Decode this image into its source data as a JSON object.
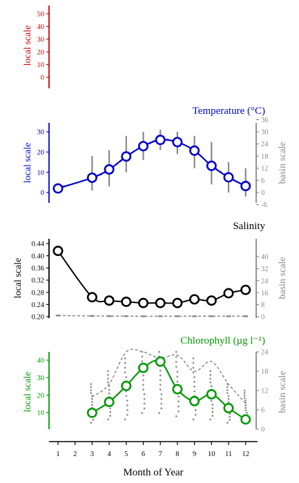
{
  "colors": {
    "temperature": "#0000cc",
    "salinity": "#000000",
    "chlorophyll": "#009900",
    "empty_panel": "#cc0000",
    "basin": "#888888"
  },
  "chart_data": [
    {
      "type": "line",
      "panel": "empty",
      "title": "",
      "ylabel": "local scale",
      "ylim": [
        -5,
        55
      ],
      "yticks": [
        0,
        10,
        20,
        30,
        40,
        50
      ],
      "series": []
    },
    {
      "type": "line",
      "panel": "temperature",
      "title": "Temperature (°C)",
      "ylabel": "local scale",
      "ylabel_right": "basin scale",
      "ylim": [
        -6,
        36
      ],
      "yticks": [
        0,
        10,
        20,
        30
      ],
      "yticks_right": [
        -6,
        0,
        6,
        12,
        18,
        24,
        30,
        36
      ],
      "x": [
        1,
        3,
        4,
        5,
        6,
        7,
        8,
        9,
        10,
        11,
        12
      ],
      "local_mean": [
        2.0,
        7.3,
        11.4,
        17.8,
        22.9,
        26.0,
        24.9,
        20.7,
        13.2,
        7.5,
        3.2
      ],
      "basin_mean": [
        2.5,
        7.0,
        11.0,
        17.5,
        23.0,
        26.5,
        25.0,
        20.5,
        13.5,
        8.0,
        3.0
      ],
      "basin_range": [
        [
          1,
          4
        ],
        [
          1,
          18
        ],
        [
          3,
          21
        ],
        [
          10,
          28
        ],
        [
          16,
          30
        ],
        [
          21,
          31
        ],
        [
          19,
          30
        ],
        [
          12,
          28
        ],
        [
          4,
          25
        ],
        [
          0,
          15
        ],
        [
          -2,
          12
        ]
      ]
    },
    {
      "type": "line",
      "panel": "salinity",
      "title": "Salinity",
      "ylabel": "local scale",
      "ylabel_right": "basin scale",
      "ylim": [
        0.2,
        0.46
      ],
      "yticks": [
        0.2,
        0.24,
        0.28,
        0.32,
        0.36,
        0.4,
        0.44
      ],
      "yticks_right": [
        0,
        8,
        16,
        24,
        32,
        40
      ],
      "ylim_right": [
        0,
        40
      ],
      "x": [
        1,
        3,
        4,
        5,
        6,
        7,
        8,
        9,
        10,
        11,
        12
      ],
      "local_mean": [
        0.416,
        0.264,
        0.253,
        0.249,
        0.245,
        0.245,
        0.245,
        0.257,
        0.253,
        0.277,
        0.288
      ],
      "basin_mean": [
        0.8,
        0.5,
        0.4,
        0.4,
        0.3,
        0.3,
        0.3,
        0.3,
        0.3,
        0.3,
        0.3
      ]
    },
    {
      "type": "line",
      "panel": "chlorophyll",
      "title": "Chlorophyll (µg l⁻¹)",
      "ylabel": "local scale",
      "ylabel_right": "basin scale",
      "ylim": [
        0,
        45
      ],
      "yticks": [
        10,
        20,
        30,
        40
      ],
      "yticks_right": [
        0,
        6,
        12,
        18,
        24
      ],
      "ylim_right": [
        0,
        24
      ],
      "x": [
        3,
        4,
        5,
        6,
        7,
        8,
        9,
        10,
        11,
        12
      ],
      "local_mean": [
        9.9,
        16.1,
        25.3,
        35.6,
        39.2,
        23.4,
        16.6,
        20.5,
        12.6,
        6.1
      ],
      "basin_mean": [
        10,
        14,
        24,
        24,
        22,
        23,
        18,
        21,
        14,
        8
      ],
      "basin_range": [
        [
          2,
          14
        ],
        [
          3,
          18
        ],
        [
          3,
          22
        ],
        [
          5,
          24
        ],
        [
          5,
          24
        ],
        [
          4,
          24
        ],
        [
          3,
          22
        ],
        [
          3,
          18
        ],
        [
          2,
          14
        ],
        [
          2,
          12
        ]
      ]
    }
  ],
  "x_axis": {
    "label": "Month of Year",
    "ticks": [
      1,
      2,
      3,
      4,
      5,
      6,
      7,
      8,
      9,
      10,
      11,
      12
    ]
  }
}
